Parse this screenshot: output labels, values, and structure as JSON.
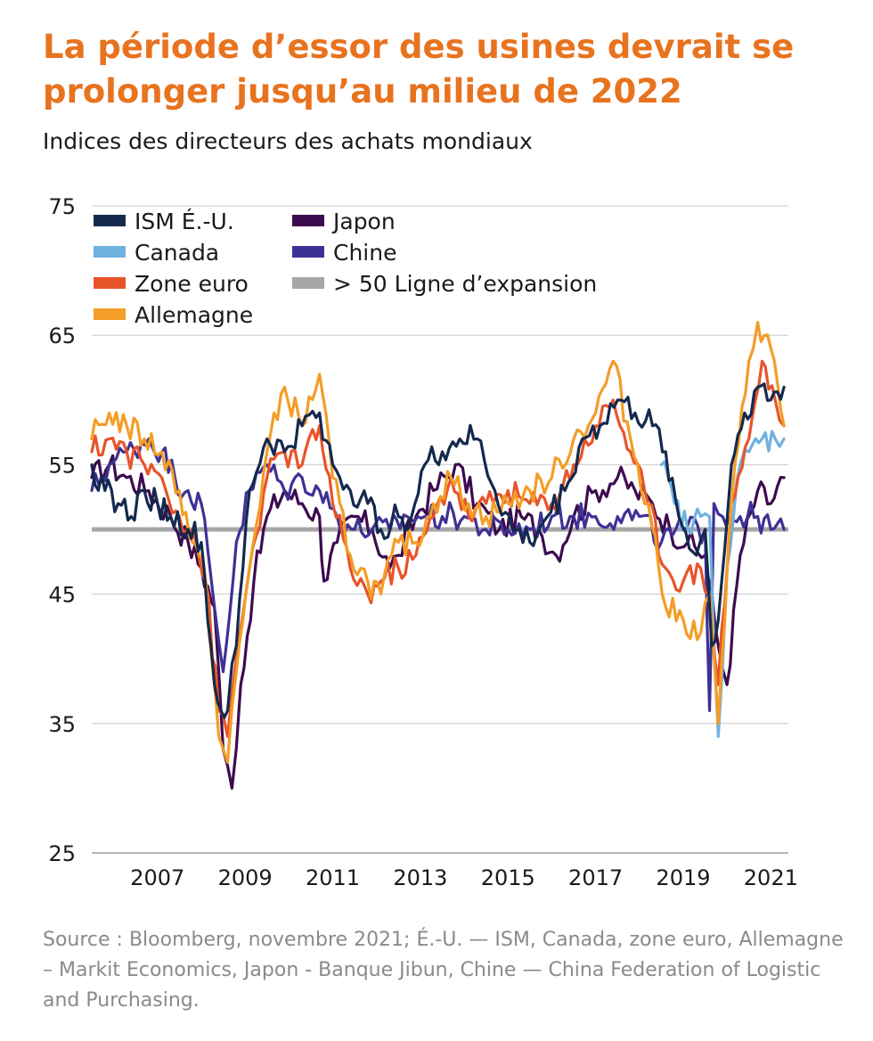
{
  "title": "La période d’essor des usines devrait se prolonger jusqu’au milieu de 2022",
  "subtitle": "Indices des directeurs des achats mondiaux",
  "source": "Source : Bloomberg, novembre 2021; É.-U. — ISM, Canada, zone euro, Allemagne – Markit Economics, Japon - Banque Jibun, Chine — China Federation of Logistic and Purchasing.",
  "chart_data": {
    "type": "line",
    "x_start": 2006.0,
    "x_end": 2021.9,
    "ylim": [
      25,
      75
    ],
    "yticks": [
      "75",
      "65",
      "55",
      "45",
      "35",
      "25"
    ],
    "xticks": [
      "2007",
      "2009",
      "2011",
      "2013",
      "2015",
      "2017",
      "2019",
      "2021"
    ],
    "reference_line": {
      "name": "> 50 Ligne d’expansion",
      "value": 50,
      "color": "#a6a6a6"
    },
    "series": [
      {
        "name": "Japon",
        "color": "#3d0b4f",
        "x": [
          2006.0,
          2006.4,
          2006.8,
          2007.3,
          2007.8,
          2008.2,
          2008.5,
          2008.8,
          2009.0,
          2009.2,
          2009.4,
          2009.7,
          2010.0,
          2010.4,
          2010.8,
          2011.2,
          2011.3,
          2011.6,
          2012.0,
          2012.4,
          2012.8,
          2013.0,
          2013.4,
          2013.8,
          2014.3,
          2014.8,
          2015.3,
          2015.8,
          2016.2,
          2016.6,
          2017.0,
          2017.5,
          2018.0,
          2018.4,
          2018.8,
          2019.2,
          2019.6,
          2020.0,
          2020.3,
          2020.5,
          2020.8,
          2021.2,
          2021.5,
          2021.8
        ],
        "y": [
          54,
          55,
          54,
          53,
          51,
          49,
          47,
          44,
          33,
          30,
          38,
          46,
          51,
          53,
          52,
          51,
          46,
          49,
          51,
          50,
          47,
          48,
          51,
          53,
          55,
          52,
          50,
          51,
          50,
          48,
          51,
          53,
          54,
          53,
          52,
          50,
          49,
          48,
          41,
          38,
          48,
          53,
          52,
          54
        ]
      },
      {
        "name": "Chine",
        "color": "#3e3195",
        "x": [
          2006.0,
          2006.4,
          2006.8,
          2007.3,
          2007.6,
          2007.9,
          2008.2,
          2008.5,
          2008.8,
          2009.0,
          2009.3,
          2009.6,
          2010.0,
          2010.4,
          2010.8,
          2011.2,
          2011.6,
          2012.0,
          2012.4,
          2012.8,
          2013.2,
          2013.6,
          2014.0,
          2014.5,
          2015.0,
          2015.5,
          2016.0,
          2016.5,
          2017.0,
          2017.5,
          2018.0,
          2018.5,
          2019.0,
          2019.5,
          2020.0,
          2020.1,
          2020.2,
          2020.4,
          2020.8,
          2021.2,
          2021.5,
          2021.8
        ],
        "y": [
          53,
          55,
          56,
          57,
          56,
          54,
          53,
          52,
          44,
          39,
          49,
          53,
          55,
          53,
          54,
          53,
          51,
          50,
          50,
          50,
          51,
          51,
          51,
          51,
          50,
          50,
          50,
          51,
          51,
          51,
          51,
          51,
          49,
          50,
          50,
          36,
          52,
          51,
          51,
          51,
          50,
          50
        ]
      },
      {
        "name": "Canada",
        "color": "#6fb2e0",
        "x": [
          2019.0,
          2019.3,
          2019.6,
          2019.9,
          2020.1,
          2020.3,
          2020.5,
          2020.8,
          2021.0,
          2021.3,
          2021.6,
          2021.8
        ],
        "y": [
          55,
          52,
          50,
          51,
          51,
          34,
          47,
          55,
          56,
          57,
          57,
          57
        ]
      },
      {
        "name": "Zone euro",
        "color": "#e8542a",
        "x": [
          2006.0,
          2006.4,
          2006.8,
          2007.2,
          2007.6,
          2008.0,
          2008.3,
          2008.6,
          2008.9,
          2009.1,
          2009.3,
          2009.6,
          2010.0,
          2010.4,
          2010.8,
          2011.2,
          2011.5,
          2011.9,
          2012.3,
          2012.6,
          2013.0,
          2013.4,
          2013.8,
          2014.2,
          2014.6,
          2015.0,
          2015.5,
          2016.0,
          2016.5,
          2017.0,
          2017.5,
          2017.9,
          2018.3,
          2018.7,
          2019.1,
          2019.5,
          2019.9,
          2020.1,
          2020.3,
          2020.6,
          2021.0,
          2021.3,
          2021.6,
          2021.8
        ],
        "y": [
          56,
          57,
          56,
          55,
          54,
          51,
          50,
          46,
          36,
          34,
          40,
          47,
          54,
          56,
          55,
          58,
          52,
          47,
          45,
          46,
          47,
          48,
          51,
          54,
          51,
          52,
          53,
          52,
          52,
          55,
          58,
          60,
          56,
          52,
          47,
          46,
          47,
          45,
          38,
          52,
          57,
          63,
          60,
          58
        ]
      },
      {
        "name": "Allemagne",
        "color": "#f39d27",
        "x": [
          2006.0,
          2006.4,
          2006.8,
          2007.2,
          2007.6,
          2008.0,
          2008.3,
          2008.6,
          2008.9,
          2009.1,
          2009.3,
          2009.6,
          2010.0,
          2010.4,
          2010.8,
          2011.2,
          2011.5,
          2011.9,
          2012.3,
          2012.6,
          2013.0,
          2013.4,
          2013.8,
          2014.2,
          2014.6,
          2015.0,
          2015.5,
          2016.0,
          2016.5,
          2017.0,
          2017.5,
          2017.9,
          2018.3,
          2018.7,
          2019.1,
          2019.5,
          2019.9,
          2020.1,
          2020.3,
          2020.6,
          2021.0,
          2021.2,
          2021.5,
          2021.8
        ],
        "y": [
          57,
          59,
          58,
          57,
          56,
          53,
          49,
          46,
          34,
          32,
          39,
          47,
          56,
          61,
          58,
          62,
          54,
          48,
          46,
          45,
          49,
          49,
          52,
          54,
          52,
          51,
          52,
          53,
          54,
          57,
          59,
          63,
          57,
          52,
          44,
          43,
          42,
          45,
          35,
          52,
          63,
          66,
          64,
          58
        ]
      },
      {
        "name": "ISM É.-U.",
        "color": "#14294d",
        "x": [
          2006.0,
          2006.3,
          2006.6,
          2006.9,
          2007.2,
          2007.5,
          2007.8,
          2008.2,
          2008.5,
          2008.8,
          2008.95,
          2009.1,
          2009.3,
          2009.6,
          2010.0,
          2010.4,
          2010.8,
          2011.2,
          2011.5,
          2011.9,
          2012.3,
          2012.6,
          2013.0,
          2013.3,
          2013.6,
          2014.0,
          2014.4,
          2014.8,
          2015.2,
          2015.6,
          2016.0,
          2016.4,
          2016.8,
          2017.2,
          2017.6,
          2018.0,
          2018.4,
          2018.8,
          2019.1,
          2019.4,
          2019.8,
          2020.0,
          2020.15,
          2020.3,
          2020.6,
          2020.9,
          2021.2,
          2021.5,
          2021.8
        ],
        "y": [
          55,
          53,
          52,
          51,
          53,
          52,
          51,
          50,
          49,
          38,
          36,
          36,
          41,
          53,
          57,
          56,
          58,
          59,
          55,
          53,
          52,
          50,
          51,
          51,
          55,
          56,
          57,
          57,
          53,
          50,
          49,
          51,
          53,
          57,
          58,
          60,
          59,
          58,
          56,
          51,
          48,
          50,
          41,
          43,
          55,
          59,
          61,
          60,
          61
        ]
      }
    ],
    "legend": [
      {
        "name": "ISM É.-U.",
        "color": "#14294d"
      },
      {
        "name": "Canada",
        "color": "#6fb2e0"
      },
      {
        "name": "Zone euro",
        "color": "#e8542a"
      },
      {
        "name": "Allemagne",
        "color": "#f39d27"
      },
      {
        "name": "Japon",
        "color": "#3d0b4f"
      },
      {
        "name": "Chine",
        "color": "#3e3195"
      },
      {
        "name": "> 50 Ligne d’expansion",
        "color": "#a6a6a6"
      }
    ],
    "legend_position": "top-left",
    "grid": true
  }
}
